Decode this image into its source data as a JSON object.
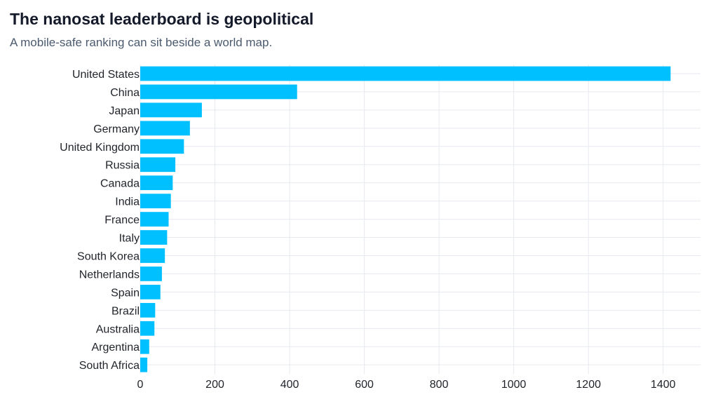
{
  "header": {
    "title": "The nanosat leaderboard is geopolitical",
    "subtitle": "A mobile-safe ranking can sit beside a world map."
  },
  "chart_data": {
    "type": "bar",
    "orientation": "horizontal",
    "title": "The nanosat leaderboard is geopolitical",
    "subtitle": "A mobile-safe ranking can sit beside a world map.",
    "xlabel": "",
    "ylabel": "",
    "categories": [
      "United States",
      "China",
      "Japan",
      "Germany",
      "United Kingdom",
      "Russia",
      "Canada",
      "India",
      "France",
      "Italy",
      "South Korea",
      "Netherlands",
      "Spain",
      "Brazil",
      "Australia",
      "Argentina",
      "South Africa"
    ],
    "values": [
      1420,
      420,
      165,
      133,
      117,
      94,
      87,
      82,
      76,
      72,
      66,
      58,
      54,
      40,
      38,
      24,
      19
    ],
    "xlim": [
      0,
      1500
    ],
    "xticks": [
      0,
      200,
      400,
      600,
      800,
      1000,
      1200,
      1400
    ],
    "grid": true,
    "legend": "none",
    "bar_color": "#00c0ff"
  }
}
